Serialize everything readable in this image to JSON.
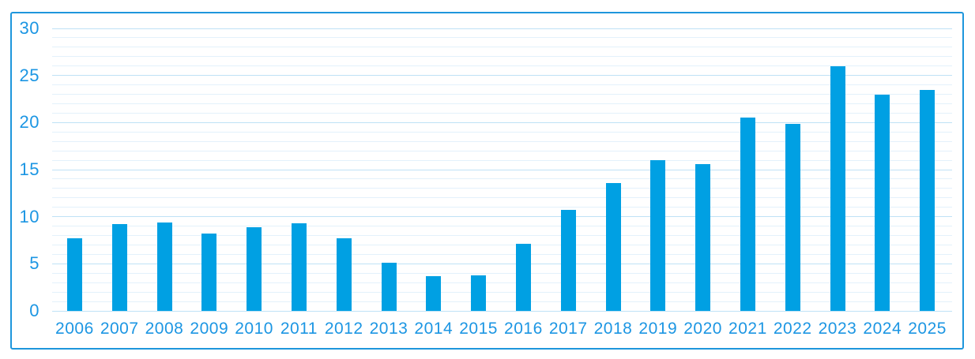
{
  "chart_data": {
    "type": "bar",
    "title": "",
    "xlabel": "",
    "ylabel": "",
    "categories": [
      "2006",
      "2007",
      "2008",
      "2009",
      "2010",
      "2011",
      "2012",
      "2013",
      "2014",
      "2015",
      "2016",
      "2017",
      "2018",
      "2019",
      "2020",
      "2021",
      "2022",
      "2023",
      "2024",
      "2025"
    ],
    "values": [
      7.7,
      9.2,
      9.4,
      8.2,
      8.9,
      9.3,
      7.7,
      5.1,
      3.7,
      3.8,
      7.1,
      10.7,
      13.6,
      16.0,
      15.6,
      20.5,
      19.9,
      26.0,
      23.0,
      23.5
    ],
    "ylim": [
      0,
      30
    ],
    "yticks": [
      0,
      5,
      10,
      15,
      20,
      25,
      30
    ],
    "grid": {
      "horizontal": true,
      "minor_step": 1,
      "major_step": 5
    },
    "legend": null,
    "colors": {
      "bar": "#00A0E3",
      "tick_label": "#1C96E3",
      "border": "#1E96DC",
      "grid_major": "#BFE2F6",
      "grid_minor": "#E3F1FB",
      "background": "#FFFFFF"
    }
  }
}
